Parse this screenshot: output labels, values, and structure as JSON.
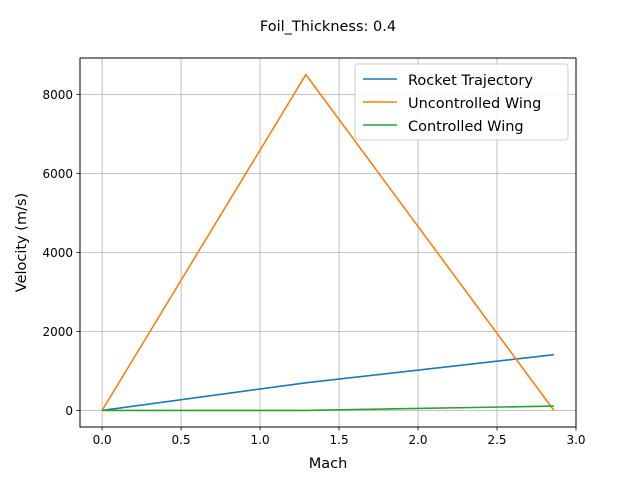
{
  "chart_data": {
    "type": "line",
    "title": "Foil_Thickness: 0.4",
    "xlabel": "Mach",
    "ylabel": "Velocity (m/s)",
    "xlim": [
      -0.14,
      3.0
    ],
    "ylim": [
      -420,
      8920
    ],
    "xticks": [
      0.0,
      0.5,
      1.0,
      1.5,
      2.0,
      2.5,
      3.0
    ],
    "xtick_labels": [
      "0.0",
      "0.5",
      "1.0",
      "1.5",
      "2.0",
      "2.5",
      "3.0"
    ],
    "yticks": [
      0,
      2000,
      4000,
      6000,
      8000
    ],
    "ytick_labels": [
      "0",
      "2000",
      "4000",
      "6000",
      "8000"
    ],
    "grid": true,
    "legend_position": "top-right",
    "series": [
      {
        "name": "Rocket Trajectory",
        "color": "#1f77b4",
        "x": [
          0.0,
          1.29,
          2.86
        ],
        "y": [
          0,
          700,
          1410
        ]
      },
      {
        "name": "Uncontrolled Wing",
        "color": "#ff7f0e",
        "x": [
          0.0,
          1.29,
          2.86
        ],
        "y": [
          0,
          8500,
          0
        ]
      },
      {
        "name": "Controlled Wing",
        "color": "#2ca02c",
        "x": [
          0.0,
          1.29,
          2.86
        ],
        "y": [
          0,
          0,
          110
        ]
      }
    ]
  }
}
